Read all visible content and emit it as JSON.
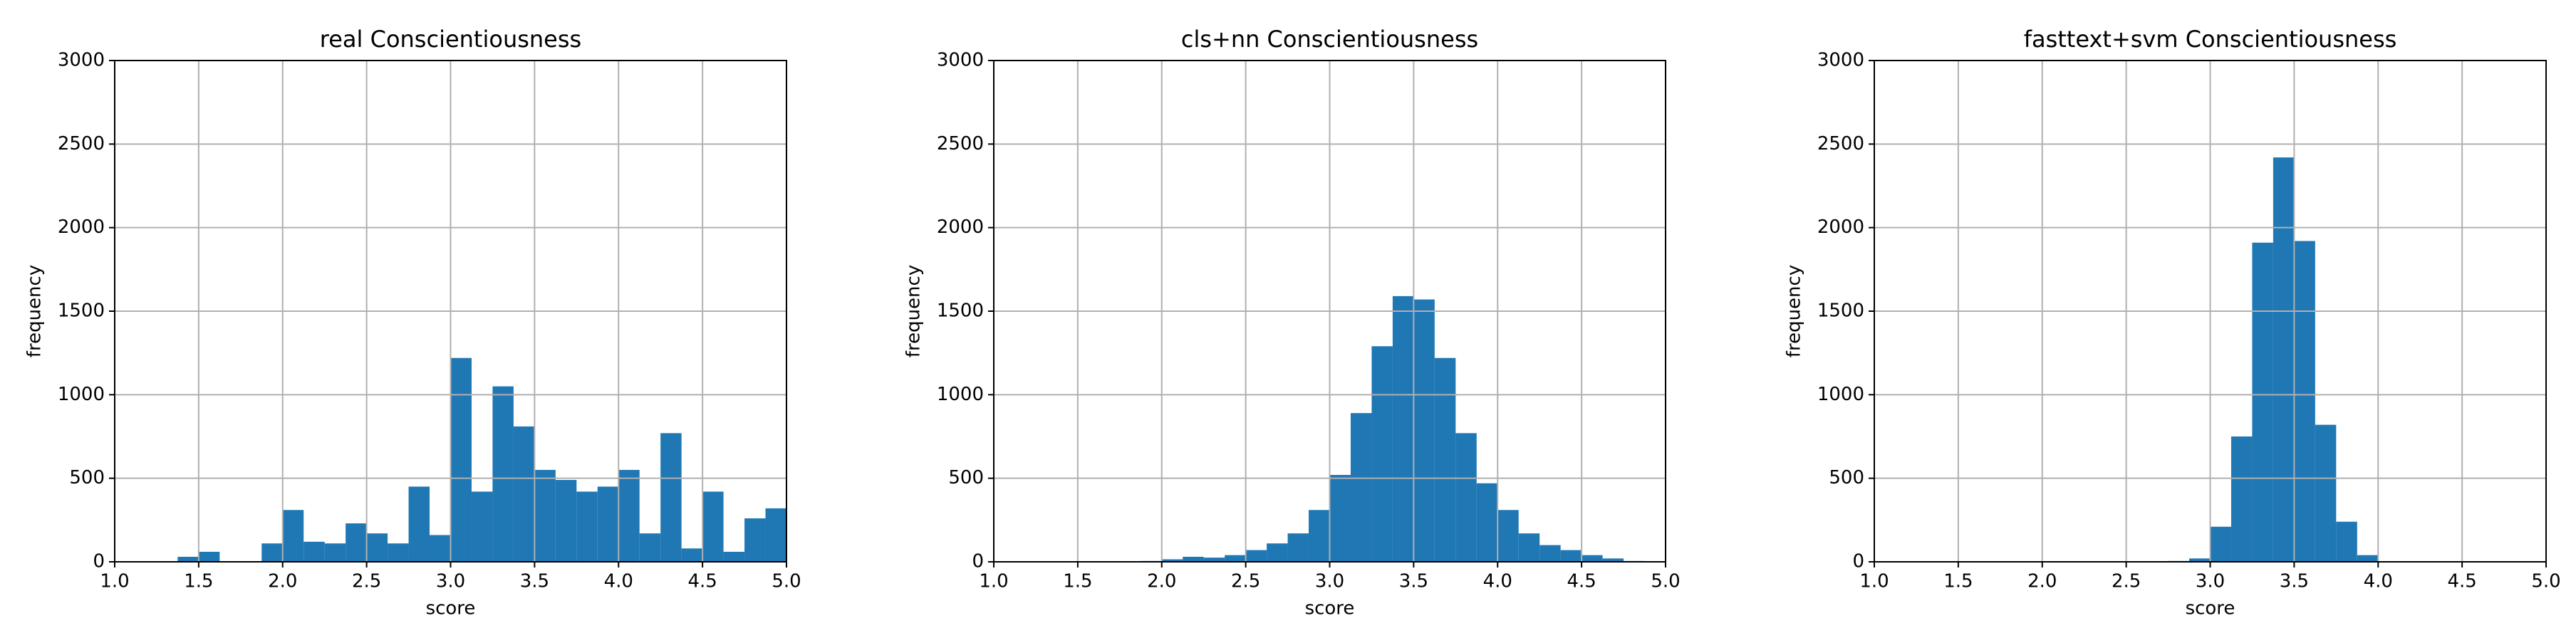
{
  "chart_data": [
    {
      "type": "histogram",
      "title": "real Conscientiousness",
      "xlabel": "score",
      "ylabel": "frequency",
      "color": "#1f77b4",
      "grid": true,
      "bins": [
        1.375,
        1.5,
        1.625,
        1.75,
        1.875,
        2.0,
        2.125,
        2.25,
        2.375,
        2.5,
        2.625,
        2.75,
        2.875,
        3.0,
        3.125,
        3.25,
        3.375,
        3.5,
        3.625,
        3.75,
        3.875,
        4.0,
        4.125,
        4.25,
        4.375,
        4.5,
        4.625,
        4.75,
        4.875,
        5.0
      ],
      "values": [
        30,
        60,
        0,
        0,
        110,
        310,
        120,
        110,
        230,
        170,
        110,
        450,
        160,
        1220,
        420,
        1050,
        810,
        550,
        490,
        420,
        450,
        550,
        170,
        770,
        80,
        420,
        60,
        260,
        320
      ],
      "xlim": [
        1,
        5
      ],
      "ylim": [
        0,
        3000
      ],
      "xticks": [
        {
          "value": 1,
          "label": "1.0"
        },
        {
          "value": 1.5,
          "label": "1.5"
        },
        {
          "value": 2,
          "label": "2.0"
        },
        {
          "value": 2.5,
          "label": "2.5"
        },
        {
          "value": 3,
          "label": "3.0"
        },
        {
          "value": 3.5,
          "label": "3.5"
        },
        {
          "value": 4,
          "label": "4.0"
        },
        {
          "value": 4.5,
          "label": "4.5"
        },
        {
          "value": 5,
          "label": "5.0"
        }
      ],
      "yticks": [
        0,
        500,
        1000,
        1500,
        2000,
        2500,
        3000
      ]
    },
    {
      "type": "histogram",
      "title": "cls+nn Conscientiousness",
      "xlabel": "score",
      "ylabel": "frequency",
      "color": "#1f77b4",
      "grid": true,
      "bins": [
        1.875,
        2.0,
        2.125,
        2.25,
        2.375,
        2.5,
        2.625,
        2.75,
        2.875,
        3.0,
        3.125,
        3.25,
        3.375,
        3.5,
        3.625,
        3.75,
        3.875,
        4.0,
        4.125,
        4.25,
        4.375,
        4.5,
        4.625,
        4.75,
        4.875,
        5.0
      ],
      "values": [
        5,
        15,
        30,
        25,
        40,
        70,
        110,
        170,
        310,
        520,
        890,
        1290,
        1590,
        1570,
        1220,
        770,
        470,
        310,
        170,
        100,
        70,
        40,
        20,
        5,
        3
      ],
      "xlim": [
        1,
        5
      ],
      "ylim": [
        0,
        3000
      ],
      "xticks": [
        {
          "value": 1,
          "label": "1.0"
        },
        {
          "value": 1.5,
          "label": "1.5"
        },
        {
          "value": 2,
          "label": "2.0"
        },
        {
          "value": 2.5,
          "label": "2.5"
        },
        {
          "value": 3,
          "label": "3.0"
        },
        {
          "value": 3.5,
          "label": "3.5"
        },
        {
          "value": 4,
          "label": "4.0"
        },
        {
          "value": 4.5,
          "label": "4.5"
        },
        {
          "value": 5,
          "label": "5.0"
        }
      ],
      "yticks": [
        0,
        500,
        1000,
        1500,
        2000,
        2500,
        3000
      ]
    },
    {
      "type": "histogram",
      "title": "fasttext+svm Conscientiousness",
      "xlabel": "score",
      "ylabel": "frequency",
      "color": "#1f77b4",
      "grid": true,
      "bins": [
        2.75,
        2.875,
        3.0,
        3.125,
        3.25,
        3.375,
        3.5,
        3.625,
        3.75,
        3.875,
        4.0
      ],
      "values": [
        5,
        20,
        210,
        750,
        1910,
        2420,
        1920,
        820,
        240,
        40
      ],
      "xlim": [
        1,
        5
      ],
      "ylim": [
        0,
        3000
      ],
      "xticks": [
        {
          "value": 1,
          "label": "1.0"
        },
        {
          "value": 1.5,
          "label": "1.5"
        },
        {
          "value": 2,
          "label": "2.0"
        },
        {
          "value": 2.5,
          "label": "2.5"
        },
        {
          "value": 3,
          "label": "3.0"
        },
        {
          "value": 3.5,
          "label": "3.5"
        },
        {
          "value": 4,
          "label": "4.0"
        },
        {
          "value": 4.5,
          "label": "4.5"
        },
        {
          "value": 5,
          "label": "5.0"
        }
      ],
      "yticks": [
        0,
        500,
        1000,
        1500,
        2000,
        2500,
        3000
      ]
    }
  ]
}
